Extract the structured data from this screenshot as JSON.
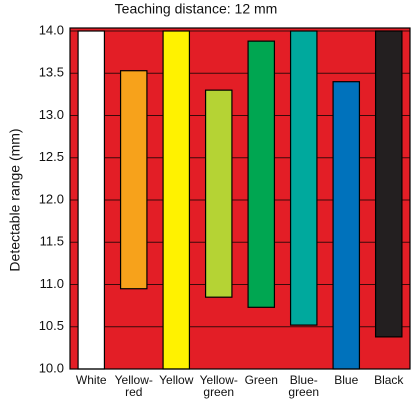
{
  "chart_data": {
    "type": "range_bar",
    "title": "Teaching distance: 12 mm",
    "y_label": "Detectable range (mm)",
    "categories": [
      "White",
      "Yellow-\nred",
      "Yellow",
      "Yellow-\ngreen",
      "Green",
      "Blue-\ngreen",
      "Blue",
      "Black"
    ],
    "low": [
      10.0,
      10.95,
      10.0,
      10.85,
      10.73,
      10.52,
      10.0,
      10.38
    ],
    "high": [
      14.0,
      13.53,
      14.0,
      13.3,
      13.88,
      14.0,
      13.4,
      14.0
    ],
    "colors": [
      "#ffffff",
      "#f7a21b",
      "#fff200",
      "#b5d334",
      "#00a651",
      "#00a99d",
      "#0072bc",
      "#231f20"
    ],
    "background": "#e31e26",
    "ylim": [
      10.0,
      14.0
    ],
    "yticks": [
      {
        "value": 10,
        "label": "10.0"
      },
      {
        "value": 10.5,
        "label": "10.5"
      },
      {
        "value": 11,
        "label": "11.0"
      },
      {
        "value": 11.5,
        "label": "11.5"
      },
      {
        "value": 12,
        "label": "12.0"
      },
      {
        "value": 12.5,
        "label": "12.5"
      },
      {
        "value": 13,
        "label": "13.0"
      },
      {
        "value": 13.5,
        "label": "13.5"
      },
      {
        "value": 14,
        "label": "14.0"
      }
    ],
    "grid": true
  }
}
